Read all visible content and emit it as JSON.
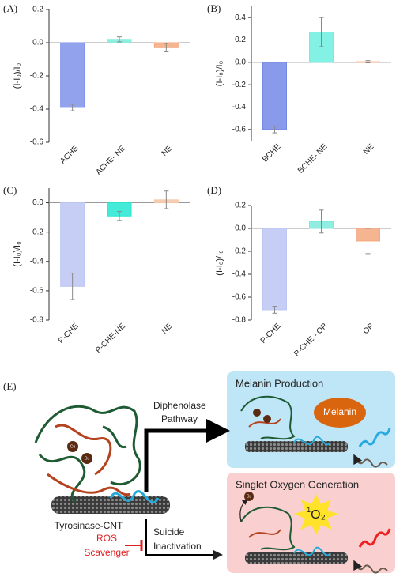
{
  "chart_data": [
    {
      "type": "bar",
      "panel": "(A)",
      "y_label": "(I-I₀)/I₀",
      "categories": [
        "ACHE",
        "ACHE- NE",
        "NE"
      ],
      "values": [
        -0.39,
        0.02,
        -0.03
      ],
      "errors": [
        0.02,
        0.015,
        0.025
      ],
      "colors": [
        "#7f92ea",
        "#7eeadb",
        "#f4a87e"
      ],
      "ylim": [
        -0.6,
        0.2
      ],
      "yticks": [
        -0.6,
        -0.4,
        -0.2,
        {
          "value": 0,
          "label": "0.0"
        },
        0.2
      ]
    },
    {
      "type": "bar",
      "panel": "(B)",
      "y_label": "(I-I₀)/I₀",
      "categories": [
        "BCHE",
        "BCHE- NE",
        "NE"
      ],
      "values": [
        -0.6,
        0.27,
        0.005
      ],
      "errors": [
        0.03,
        0.13,
        0.01
      ],
      "colors": [
        "#7488e6",
        "#6fefe0",
        "#f4a87e"
      ],
      "ylim": [
        -0.7,
        0.5
      ],
      "yticks": [
        -0.6,
        -0.4,
        -0.2,
        {
          "value": 0,
          "label": "0.0"
        },
        0.2,
        0.4
      ]
    },
    {
      "type": "bar",
      "panel": "(C)",
      "y_label": "(I-I₀)/I₀",
      "categories": [
        "P-CHE",
        "P-CHE-NE",
        "NE"
      ],
      "values": [
        -0.57,
        -0.09,
        0.02
      ],
      "errors": [
        0.09,
        0.03,
        0.06
      ],
      "colors": [
        "#bcc6f3",
        "#25e6d2",
        "#f6c6a8"
      ],
      "ylim": [
        -0.8,
        0.1
      ],
      "yticks": [
        -0.8,
        -0.6,
        -0.4,
        -0.2,
        {
          "value": 0,
          "label": "0.0"
        }
      ]
    },
    {
      "type": "bar",
      "panel": "(D)",
      "y_label": "(I-I₀)/I₀",
      "categories": [
        "P-CHE",
        "P-CHE - OP",
        "OP"
      ],
      "values": [
        -0.71,
        0.06,
        -0.11
      ],
      "errors": [
        0.03,
        0.1,
        0.11
      ],
      "colors": [
        "#bcc6f3",
        "#7eeadb",
        "#f4a87e"
      ],
      "ylim": [
        -0.8,
        0.2
      ],
      "yticks": [
        -0.8,
        -0.6,
        -0.4,
        -0.2,
        {
          "value": 0,
          "label": "0.0"
        },
        0.2
      ]
    }
  ],
  "diagram": {
    "label": "(E)",
    "arrow_top": [
      "Diphenolase",
      "Pathway"
    ],
    "arrow_bottom": [
      "Suicide",
      "Inactivation"
    ],
    "inhibitor": [
      "ROS",
      "Scavenger"
    ],
    "complex": "Tyrosinase-CNT",
    "metal": "Cu",
    "top_box": {
      "title": "Melanin Production",
      "product": "Melanin"
    },
    "bottom_box": {
      "title": "Singlet Oxygen Generation",
      "product_super": "1",
      "product": "O₂"
    }
  }
}
